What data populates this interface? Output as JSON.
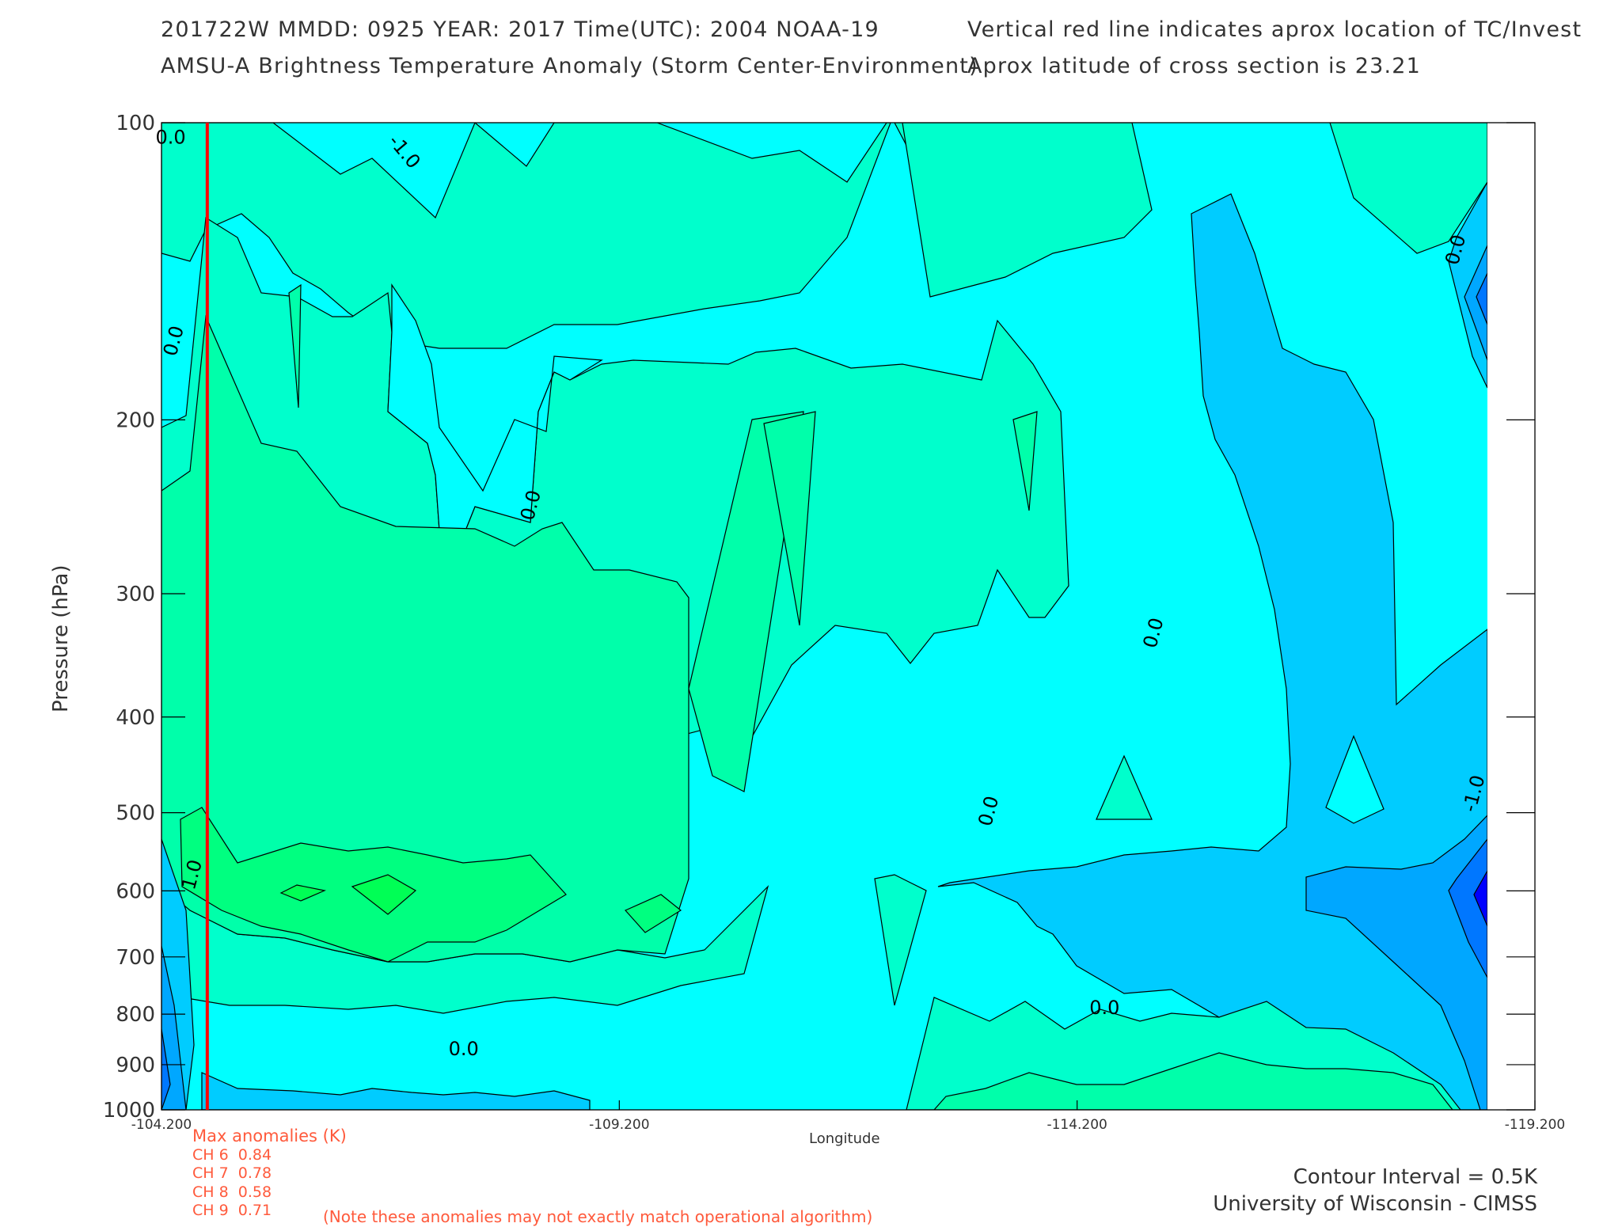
{
  "header": {
    "line1_left": "201722W  MMDD: 0925 YEAR: 2017 Time(UTC): 2004 NOAA-19",
    "line2_left": "AMSU-A Brightness Temperature Anomaly (Storm Center-Environment)",
    "line1_right": "Vertical red line indicates aprox location of TC/Invest",
    "line2_right": "Aprox latitude of cross section is 23.21"
  },
  "chart_data": {
    "type": "contour",
    "xlabel": "Longitude",
    "ylabel": "Pressure (hPa)",
    "x_ticks": [
      "-104.200",
      "-109.200",
      "-114.200",
      "-119.200"
    ],
    "x_tick_values": [
      -104.2,
      -109.2,
      -114.2,
      -119.2
    ],
    "xlim": [
      -104.2,
      -119.2
    ],
    "y_ticks": [
      "100",
      "200",
      "300",
      "400",
      "500",
      "600",
      "700",
      "800",
      "900",
      "1000"
    ],
    "y_tick_values": [
      100,
      200,
      300,
      400,
      500,
      600,
      700,
      800,
      900,
      1000
    ],
    "ylim": [
      100,
      1000
    ],
    "y_scale": "log",
    "data_xmax": -118.7,
    "contour_interval_k": 0.5,
    "tc_longitude": -104.7,
    "contour_labels": [
      {
        "text": "0.0",
        "x": -104.3,
        "p": 105
      },
      {
        "text": "-1.0",
        "x": -106.8,
        "p": 108
      },
      {
        "text": "0.0",
        "x": -104.4,
        "p": 167
      },
      {
        "text": "0.0",
        "x": -108.3,
        "p": 245
      },
      {
        "text": "0.0",
        "x": -118.4,
        "p": 135
      },
      {
        "text": "0.0",
        "x": -115.1,
        "p": 330
      },
      {
        "text": "0.0",
        "x": -113.3,
        "p": 500
      },
      {
        "text": "-1.0",
        "x": -118.6,
        "p": 480
      },
      {
        "text": "1.0",
        "x": -104.6,
        "p": 580
      },
      {
        "text": "0.0",
        "x": -107.5,
        "p": 880
      },
      {
        "text": "0.0",
        "x": -114.5,
        "p": 800
      }
    ],
    "max_anomalies": {
      "title": "Max anomalies (K)",
      "channels": [
        {
          "label": "CH 6",
          "value": "0.84"
        },
        {
          "label": "CH 7",
          "value": "0.78"
        },
        {
          "label": "CH 8",
          "value": "0.58"
        },
        {
          "label": "CH 9",
          "value": "0.71"
        }
      ]
    },
    "note": "(Note these anomalies may not exactly match operational algorithm)"
  },
  "footer": {
    "contour_interval": "Contour Interval = 0.5K",
    "credit": "University of Wisconsin - CIMSS"
  },
  "colors": {
    "level_minus2": "#0000ff",
    "level_minus1_5": "#0077ff",
    "level_minus1": "#00a7ff",
    "level_minus0_5": "#00ccff",
    "level_0": "#00ffff",
    "level_0_5": "#00ffcc",
    "level_1": "#00ffaa",
    "level_1_5": "#00ff80",
    "level_2": "#00ff55",
    "tc_line": "#ff0000"
  }
}
